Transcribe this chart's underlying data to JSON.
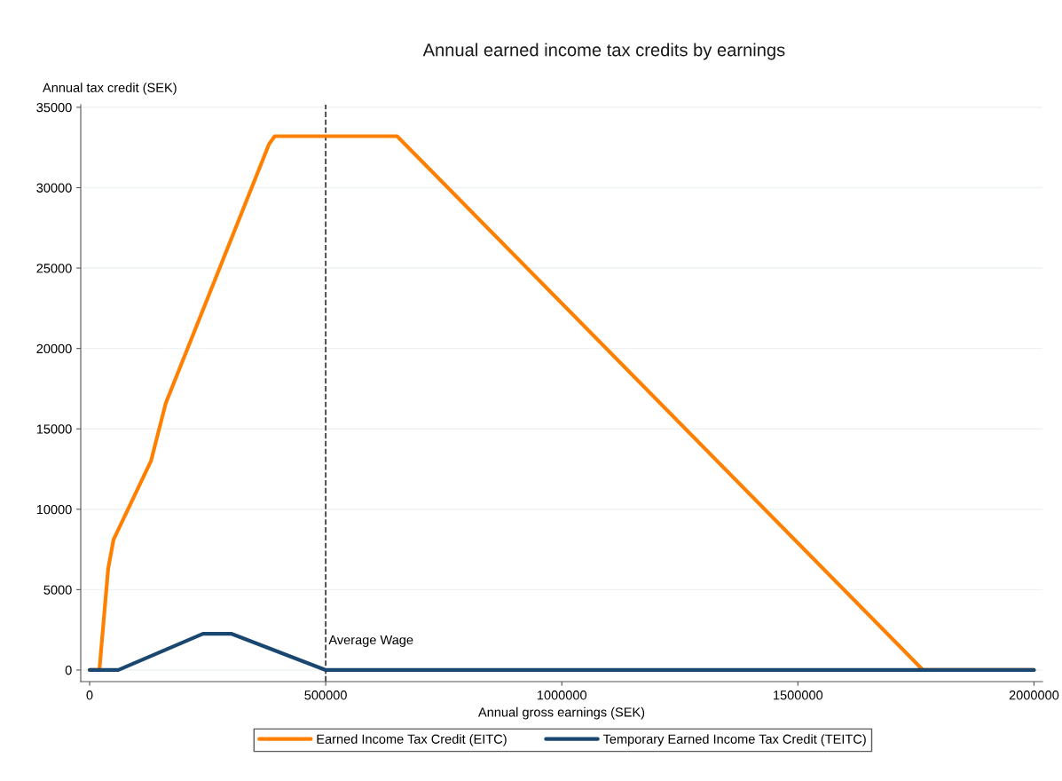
{
  "chart_data": {
    "type": "line",
    "title": "Annual earned income tax credits by earnings",
    "xlabel": "Annual gross earnings (SEK)",
    "ylabel": "Annual tax credit (SEK)",
    "series": [
      {
        "name": "Earned Income Tax Credit (EITC)",
        "color": "#ff8000",
        "x": [
          0,
          20700,
          39300,
          50600,
          130000,
          161300,
          379900,
          391900,
          651300,
          1765000,
          2000000
        ],
        "values": [
          0,
          0,
          6300,
          8100,
          13000,
          16600,
          32700,
          33200,
          33200,
          0,
          0
        ]
      },
      {
        "name": "Temporary Earned Income Tax Credit (TEITC)",
        "color": "#1a476f",
        "x": [
          0,
          60900,
          240000,
          301000,
          500000,
          2000000
        ],
        "values": [
          0,
          0,
          2250,
          2250,
          0,
          0
        ]
      }
    ],
    "xlim": [
      -18800,
      2018000
    ],
    "ylim": [
      -720,
      35160
    ],
    "xticks": [
      0,
      500000,
      1000000,
      1500000,
      2000000
    ],
    "yticks": [
      0,
      5000,
      10000,
      15000,
      20000,
      25000,
      30000,
      35000
    ],
    "ref_lines": [
      {
        "axis": "x",
        "value": 500000,
        "label": "Average Wage",
        "color": "#333333",
        "line_style": "dashed"
      }
    ],
    "grid": "y",
    "legend": "bottom",
    "marker": "none",
    "line_style": "solid"
  }
}
